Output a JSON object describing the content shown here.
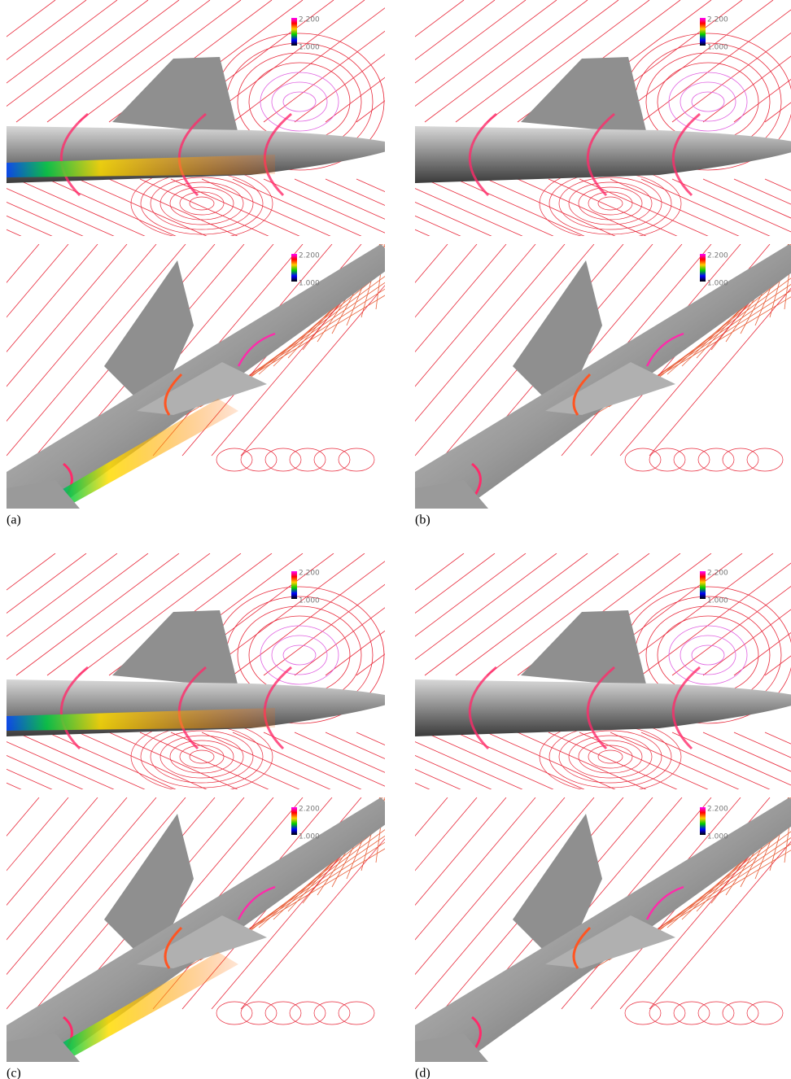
{
  "figure": {
    "panels": [
      {
        "label": "(a)",
        "views": [
          {
            "colorbar": {
              "max": "2.200",
              "min": "1.000"
            }
          },
          {
            "colorbar": {
              "max": "2.200",
              "min": "1.000"
            }
          }
        ]
      },
      {
        "label": "(b)",
        "views": [
          {
            "colorbar": {
              "max": "2.200",
              "min": "1.000"
            }
          },
          {
            "colorbar": {
              "max": "2.200",
              "min": "1.000"
            }
          }
        ]
      },
      {
        "label": "(c)",
        "views": [
          {
            "colorbar": {
              "max": "2.200",
              "min": "1.000"
            }
          },
          {
            "colorbar": {
              "max": "2.200",
              "min": "1.000"
            }
          }
        ]
      },
      {
        "label": "(d)",
        "views": [
          {
            "colorbar": {
              "max": "2.200",
              "min": "1.000"
            }
          },
          {
            "colorbar": {
              "max": "2.200",
              "min": "1.000"
            }
          }
        ]
      }
    ]
  }
}
